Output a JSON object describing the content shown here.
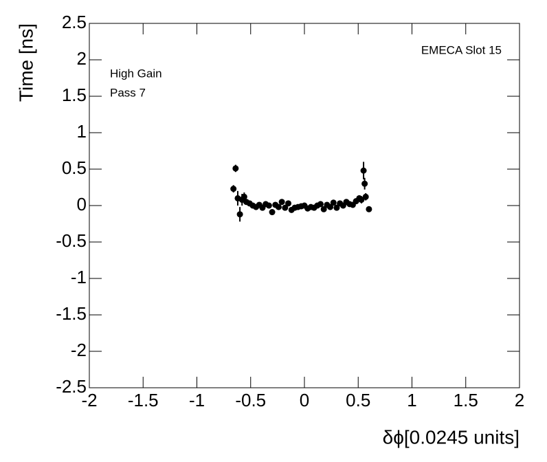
{
  "chart_data": {
    "type": "scatter",
    "annotations": [
      "EMECA Slot 15",
      "High Gain",
      "Pass 7"
    ],
    "x_label": "δϕ[0.0245 units]",
    "y_label": "Time [ns]",
    "xlim": [
      -2,
      2
    ],
    "ylim": [
      -2.5,
      2.5
    ],
    "xticks": [
      -2,
      -1.5,
      -1,
      -0.5,
      0,
      0.5,
      1,
      1.5,
      2
    ],
    "yticks": [
      -2.5,
      -2,
      -1.5,
      -1,
      -0.5,
      0,
      0.5,
      1,
      1.5,
      2,
      2.5
    ],
    "color": "#000000",
    "x": [
      -0.66,
      -0.64,
      -0.62,
      -0.6,
      -0.58,
      -0.56,
      -0.54,
      -0.51,
      -0.48,
      -0.45,
      -0.42,
      -0.39,
      -0.36,
      -0.33,
      -0.3,
      -0.27,
      -0.24,
      -0.21,
      -0.18,
      -0.15,
      -0.12,
      -0.09,
      -0.06,
      -0.03,
      0,
      0.03,
      0.06,
      0.09,
      0.12,
      0.15,
      0.18,
      0.21,
      0.24,
      0.27,
      0.3,
      0.33,
      0.36,
      0.39,
      0.42,
      0.45,
      0.48,
      0.51,
      0.53,
      0.55,
      0.56,
      0.57,
      0.6
    ],
    "values": [
      0.23,
      0.51,
      0.1,
      -0.12,
      0.08,
      0.12,
      0.05,
      0.03,
      0.0,
      -0.02,
      0.01,
      -0.03,
      0.02,
      0.0,
      -0.09,
      0.01,
      -0.02,
      0.05,
      -0.03,
      0.03,
      -0.06,
      -0.03,
      -0.02,
      -0.01,
      0.0,
      -0.04,
      -0.02,
      -0.03,
      0.0,
      0.02,
      -0.05,
      0.01,
      -0.02,
      0.04,
      -0.03,
      0.03,
      0.0,
      0.05,
      0.02,
      0.01,
      0.06,
      0.1,
      0.08,
      0.48,
      0.3,
      0.12,
      -0.05
    ],
    "errors": [
      0.05,
      0.05,
      0.1,
      0.1,
      0.08,
      0.06,
      0.04,
      0.02,
      0.02,
      0.02,
      0.02,
      0.02,
      0.02,
      0.02,
      0.02,
      0.02,
      0.02,
      0.02,
      0.02,
      0.02,
      0.02,
      0.02,
      0.02,
      0.02,
      0.02,
      0.02,
      0.02,
      0.02,
      0.02,
      0.02,
      0.02,
      0.02,
      0.02,
      0.02,
      0.02,
      0.02,
      0.02,
      0.02,
      0.02,
      0.02,
      0.02,
      0.02,
      0.05,
      0.12,
      0.08,
      0.05,
      0.03
    ]
  }
}
